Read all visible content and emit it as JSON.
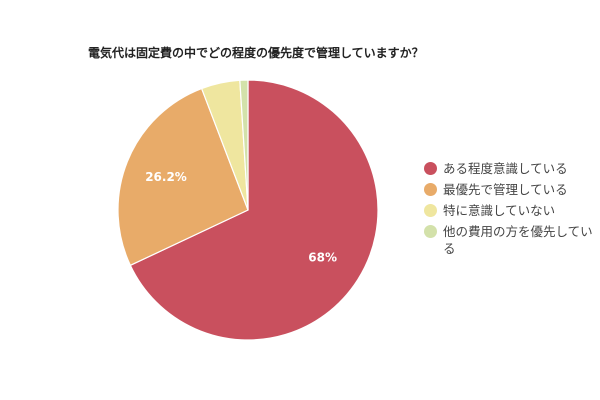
{
  "chart_data": {
    "type": "pie",
    "title": "電気代は固定費の中でどの程度の優先度で管理していますか？",
    "slices": [
      {
        "label": "ある程度意識している",
        "value": 68,
        "data_label": "68%",
        "color": "#c9505e"
      },
      {
        "label": "最優先で管理している",
        "value": 26.2,
        "data_label": "26.2%",
        "color": "#e8ab69"
      },
      {
        "label": "特に意識していない",
        "value": 4.8,
        "data_label": "",
        "color": "#efe69f"
      },
      {
        "label": "他の費用の方を優先している",
        "value": 1.0,
        "data_label": "",
        "color": "#d3e1aa"
      }
    ],
    "start_angle": "top",
    "direction": "clockwise",
    "legend_position": "right"
  }
}
